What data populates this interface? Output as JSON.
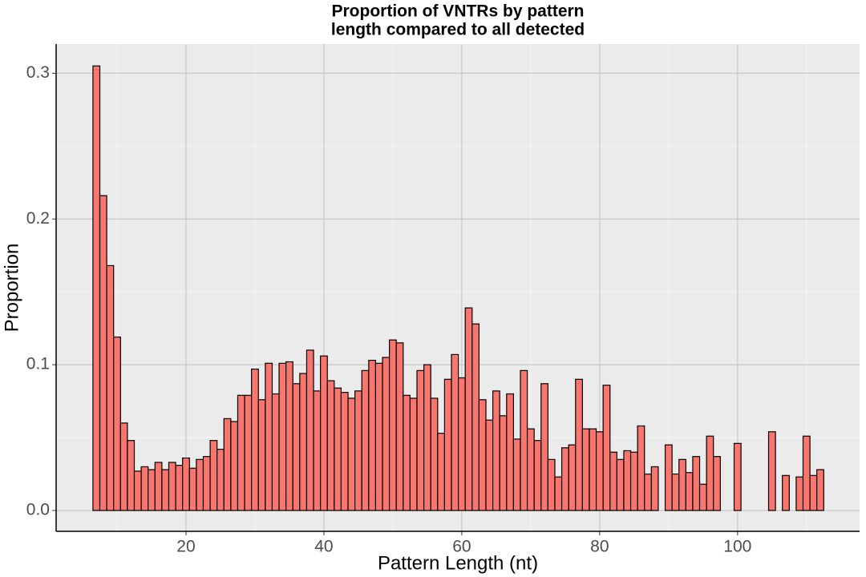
{
  "chart_data": {
    "type": "bar",
    "title": [
      "Proportion of VNTRs by pattern",
      "length compared to all detected"
    ],
    "x_label": "Pattern Length (nt)",
    "y_label": "Proportion",
    "x": [
      7,
      8,
      9,
      10,
      11,
      12,
      13,
      14,
      15,
      16,
      17,
      18,
      19,
      20,
      21,
      22,
      23,
      24,
      25,
      26,
      27,
      28,
      29,
      30,
      31,
      32,
      33,
      34,
      35,
      36,
      37,
      38,
      39,
      40,
      41,
      42,
      43,
      44,
      45,
      46,
      47,
      48,
      49,
      50,
      51,
      52,
      53,
      54,
      55,
      56,
      57,
      58,
      59,
      60,
      61,
      62,
      63,
      64,
      65,
      66,
      67,
      68,
      69,
      70,
      71,
      72,
      73,
      74,
      75,
      76,
      77,
      78,
      79,
      80,
      81,
      82,
      83,
      84,
      85,
      86,
      87,
      88,
      90,
      91,
      92,
      93,
      94,
      95,
      96,
      97,
      100,
      105,
      107,
      109,
      110,
      111,
      112
    ],
    "values": [
      0.305,
      0.216,
      0.168,
      0.119,
      0.06,
      0.048,
      0.027,
      0.03,
      0.028,
      0.033,
      0.028,
      0.033,
      0.031,
      0.036,
      0.029,
      0.035,
      0.037,
      0.048,
      0.042,
      0.063,
      0.061,
      0.079,
      0.079,
      0.097,
      0.076,
      0.101,
      0.08,
      0.101,
      0.102,
      0.087,
      0.094,
      0.11,
      0.082,
      0.106,
      0.089,
      0.084,
      0.081,
      0.077,
      0.082,
      0.096,
      0.103,
      0.101,
      0.105,
      0.117,
      0.115,
      0.079,
      0.077,
      0.096,
      0.1,
      0.077,
      0.053,
      0.09,
      0.107,
      0.091,
      0.139,
      0.128,
      0.076,
      0.062,
      0.082,
      0.065,
      0.08,
      0.049,
      0.096,
      0.056,
      0.048,
      0.087,
      0.035,
      0.023,
      0.043,
      0.045,
      0.09,
      0.056,
      0.056,
      0.054,
      0.086,
      0.04,
      0.035,
      0.041,
      0.04,
      0.058,
      0.025,
      0.03,
      0.045,
      0.025,
      0.035,
      0.026,
      0.037,
      0.018,
      0.051,
      0.037,
      0.046,
      0.054,
      0.024,
      0.023,
      0.051,
      0.024,
      0.028
    ],
    "color": "#f8766d",
    "edge_color": "#000000",
    "xlim": [
      1.16,
      117.7
    ],
    "ylim": [
      -0.0143,
      0.32
    ],
    "xticks": [
      20,
      40,
      60,
      80,
      100
    ],
    "yticks": [
      {
        "value": 0,
        "label": "0.0"
      },
      0.1,
      0.2,
      0.3
    ],
    "grid": true
  }
}
